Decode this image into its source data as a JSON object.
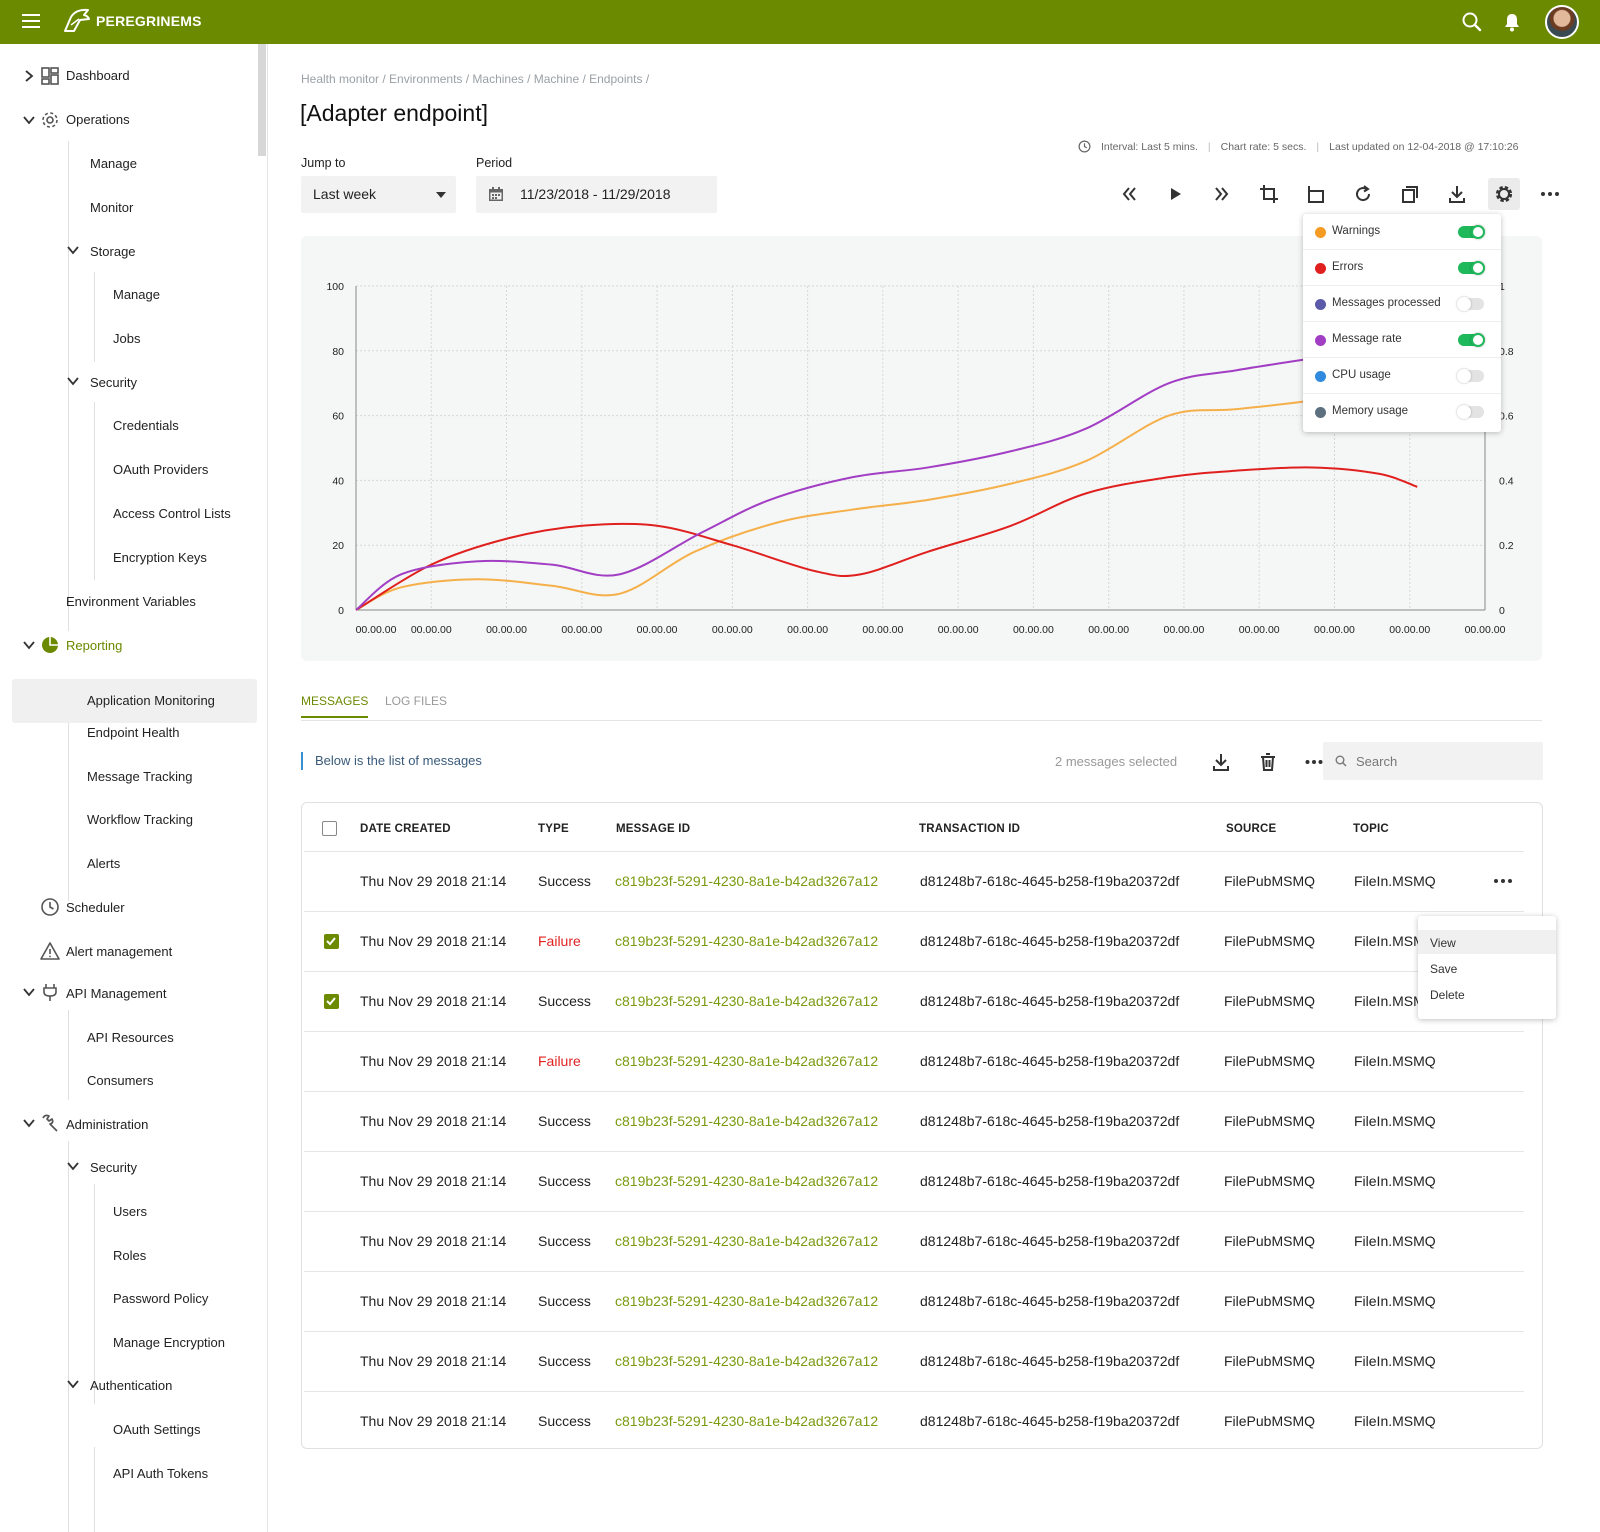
{
  "app": {
    "brand": "PEREGRINEMS"
  },
  "sidebar": {
    "dashboard": "Dashboard",
    "operations": "Operations",
    "ops_manage": "Manage",
    "ops_monitor": "Monitor",
    "storage": "Storage",
    "storage_manage": "Manage",
    "storage_jobs": "Jobs",
    "security": "Security",
    "credentials": "Credentials",
    "oauth_providers": "OAuth Providers",
    "acl": "Access Control Lists",
    "encryption_keys": "Encryption Keys",
    "env_vars": "Environment Variables",
    "reporting": "Reporting",
    "app_monitoring": "Application Monitoring",
    "endpoint_health": "Endpoint Health",
    "message_tracking": "Message Tracking",
    "workflow_tracking": "Workflow Tracking",
    "alerts": "Alerts",
    "scheduler": "Scheduler",
    "alert_mgmt": "Alert management",
    "api_mgmt": "API Management",
    "api_resources": "API Resources",
    "consumers": "Consumers",
    "administration": "Administration",
    "admin_security": "Security",
    "users": "Users",
    "roles": "Roles",
    "password_policy": "Password Policy",
    "manage_encryption": "Manage Encryption",
    "authentication": "Authentication",
    "oauth_settings": "OAuth Settings",
    "api_auth_tokens": "API Auth Tokens"
  },
  "breadcrumb": "Health monitor / Environments / Machines / Machine / Endpoints /",
  "page_title": "[Adapter endpoint]",
  "status": {
    "interval": "Interval: Last 5 mins.",
    "chart_rate": "Chart rate: 5 secs.",
    "last_updated": "Last updated on 12-04-2018 @ 17:10:26"
  },
  "filters": {
    "jump_to_label": "Jump to",
    "jump_to_value": "Last week",
    "period_label": "Period",
    "period_value": "11/23/2018 -  11/29/2018"
  },
  "legend": [
    {
      "name": "Warnings",
      "color": "#f59a23",
      "on": true
    },
    {
      "name": "Errors",
      "color": "#e0201e",
      "on": true
    },
    {
      "name": "Messages processed",
      "color": "#5a5aa8",
      "on": false
    },
    {
      "name": "Message rate",
      "color": "#a23ec4",
      "on": true
    },
    {
      "name": "CPU usage",
      "color": "#2f8ae0",
      "on": false
    },
    {
      "name": "Memory usage",
      "color": "#5d7080",
      "on": false
    }
  ],
  "chart_data": {
    "type": "line",
    "x_tick_labels": [
      "00.00.00",
      "00.00.00",
      "00.00.00",
      "00.00.00",
      "00.00.00",
      "00.00.00",
      "00.00.00",
      "00.00.00",
      "00.00.00",
      "00.00.00",
      "00.00.00",
      "00.00.00",
      "00.00.00",
      "00.00.00",
      "00.00.00",
      "00.00.00"
    ],
    "y_left_ticks": [
      "0",
      "20",
      "40",
      "60",
      "80",
      "100"
    ],
    "y_right_ticks": [
      "0",
      "0.2",
      "0.4",
      "0.6",
      "0.8",
      "1"
    ],
    "ylim": [
      0,
      100
    ],
    "grid": true,
    "series": [
      {
        "name": "Warnings",
        "color": "#f5b04a",
        "points": [
          [
            0,
            0
          ],
          [
            0.6,
            7
          ],
          [
            1.6,
            9.5
          ],
          [
            2.6,
            7.5
          ],
          [
            3.5,
            5
          ],
          [
            4.5,
            18
          ],
          [
            5.6,
            27
          ],
          [
            6.6,
            31
          ],
          [
            7.6,
            34
          ],
          [
            8.7,
            39
          ],
          [
            9.7,
            46
          ],
          [
            10.8,
            60
          ],
          [
            11.7,
            62
          ],
          [
            12.8,
            65
          ],
          [
            13.6,
            69
          ]
        ]
      },
      {
        "name": "Errors",
        "color": "#e0201e",
        "points": [
          [
            0,
            0
          ],
          [
            1,
            14
          ],
          [
            2,
            22
          ],
          [
            3,
            26
          ],
          [
            4,
            26
          ],
          [
            5,
            20
          ],
          [
            6.1,
            12
          ],
          [
            6.7,
            11
          ],
          [
            7.6,
            18
          ],
          [
            8.7,
            26
          ],
          [
            9.7,
            36
          ],
          [
            10.8,
            41
          ],
          [
            11.7,
            43
          ],
          [
            12.7,
            44
          ],
          [
            13.6,
            42
          ],
          [
            14.1,
            38
          ]
        ]
      },
      {
        "name": "Message rate",
        "color": "#a23ec4",
        "points": [
          [
            0,
            0
          ],
          [
            0.6,
            11
          ],
          [
            1.6,
            15
          ],
          [
            2.6,
            14
          ],
          [
            3.5,
            11
          ],
          [
            4.6,
            24
          ],
          [
            5.5,
            34
          ],
          [
            6.6,
            41
          ],
          [
            7.6,
            44
          ],
          [
            8.7,
            49
          ],
          [
            9.7,
            56
          ],
          [
            10.8,
            70
          ],
          [
            11.7,
            74
          ],
          [
            12.8,
            78
          ]
        ]
      }
    ]
  },
  "tabs": {
    "messages": "MESSAGES",
    "log_files": "LOG FILES"
  },
  "messages_bar": {
    "info": "Below is the list of messages",
    "selected": "2 messages selected",
    "search_placeholder": "Search"
  },
  "table": {
    "columns": [
      "DATE CREATED",
      "TYPE",
      "MESSAGE ID",
      "TRANSACTION ID",
      "SOURCE",
      "TOPIC"
    ],
    "rows": [
      {
        "checked": false,
        "date": "Thu Nov 29 2018 21:14",
        "type": "Success",
        "message_id": "c819b23f-5291-4230-8a1e-b42ad3267a12",
        "transaction_id": "d81248b7-618c-4645-b258-f19ba20372df",
        "source": "FilePubMSMQ",
        "topic": "FileIn.MSMQ"
      },
      {
        "checked": true,
        "date": "Thu Nov 29 2018 21:14",
        "type": "Failure",
        "message_id": "c819b23f-5291-4230-8a1e-b42ad3267a12",
        "transaction_id": "d81248b7-618c-4645-b258-f19ba20372df",
        "source": "FilePubMSMQ",
        "topic": "FileIn.MSMQ"
      },
      {
        "checked": true,
        "date": "Thu Nov 29 2018 21:14",
        "type": "Success",
        "message_id": "c819b23f-5291-4230-8a1e-b42ad3267a12",
        "transaction_id": "d81248b7-618c-4645-b258-f19ba20372df",
        "source": "FilePubMSMQ",
        "topic": "FileIn.MSMQ"
      },
      {
        "checked": false,
        "date": "Thu Nov 29 2018 21:14",
        "type": "Failure",
        "message_id": "c819b23f-5291-4230-8a1e-b42ad3267a12",
        "transaction_id": "d81248b7-618c-4645-b258-f19ba20372df",
        "source": "FilePubMSMQ",
        "topic": "FileIn.MSMQ"
      },
      {
        "checked": false,
        "date": "Thu Nov 29 2018 21:14",
        "type": "Success",
        "message_id": "c819b23f-5291-4230-8a1e-b42ad3267a12",
        "transaction_id": "d81248b7-618c-4645-b258-f19ba20372df",
        "source": "FilePubMSMQ",
        "topic": "FileIn.MSMQ"
      },
      {
        "checked": false,
        "date": "Thu Nov 29 2018 21:14",
        "type": "Success",
        "message_id": "c819b23f-5291-4230-8a1e-b42ad3267a12",
        "transaction_id": "d81248b7-618c-4645-b258-f19ba20372df",
        "source": "FilePubMSMQ",
        "topic": "FileIn.MSMQ"
      },
      {
        "checked": false,
        "date": "Thu Nov 29 2018 21:14",
        "type": "Success",
        "message_id": "c819b23f-5291-4230-8a1e-b42ad3267a12",
        "transaction_id": "d81248b7-618c-4645-b258-f19ba20372df",
        "source": "FilePubMSMQ",
        "topic": "FileIn.MSMQ"
      },
      {
        "checked": false,
        "date": "Thu Nov 29 2018 21:14",
        "type": "Success",
        "message_id": "c819b23f-5291-4230-8a1e-b42ad3267a12",
        "transaction_id": "d81248b7-618c-4645-b258-f19ba20372df",
        "source": "FilePubMSMQ",
        "topic": "FileIn.MSMQ"
      },
      {
        "checked": false,
        "date": "Thu Nov 29 2018 21:14",
        "type": "Success",
        "message_id": "c819b23f-5291-4230-8a1e-b42ad3267a12",
        "transaction_id": "d81248b7-618c-4645-b258-f19ba20372df",
        "source": "FilePubMSMQ",
        "topic": "FileIn.MSMQ"
      },
      {
        "checked": false,
        "date": "Thu Nov 29 2018 21:14",
        "type": "Success",
        "message_id": "c819b23f-5291-4230-8a1e-b42ad3267a12",
        "transaction_id": "d81248b7-618c-4645-b258-f19ba20372df",
        "source": "FilePubMSMQ",
        "topic": "FileIn.MSMQ"
      }
    ]
  },
  "row_menu": [
    "View",
    "Save",
    "Delete"
  ],
  "colors": {
    "brand": "#6b8a00",
    "link": "#7a9a10",
    "failure": "#e02424",
    "toggle_on": "#1fb85b"
  }
}
